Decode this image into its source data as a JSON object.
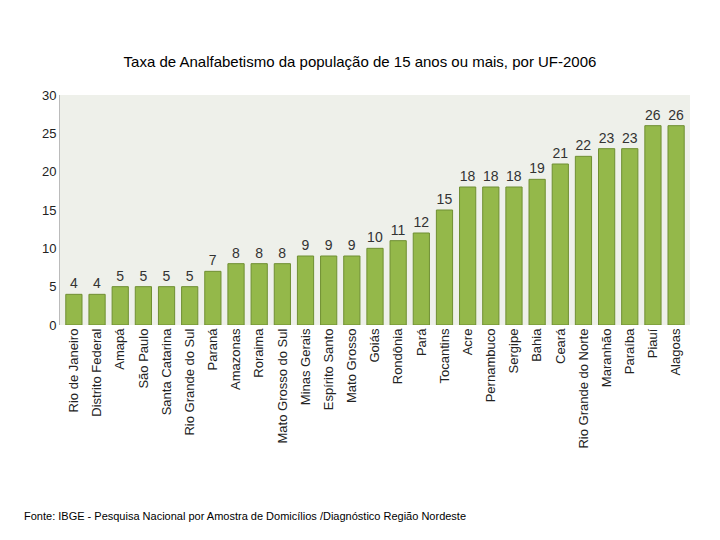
{
  "chart_data": {
    "type": "bar",
    "title": "Taxa de Analfabetismo da população de 15 anos ou mais, por UF-2006",
    "categories": [
      "Rio de Janeiro",
      "Distrito Federal",
      "Amapá",
      "São Paulo",
      "Santa Catarina",
      "Rio Grande do Sul",
      "Paraná",
      "Amazonas",
      "Roraima",
      "Mato Grosso do Sul",
      "Minas Gerais",
      "Espírito Santo",
      "Mato Grosso",
      "Goiás",
      "Rondônia",
      "Pará",
      "Tocantins",
      "Acre",
      "Pernambuco",
      "Sergipe",
      "Bahia",
      "Ceará",
      "Rio Grande do Norte",
      "Maranhão",
      "Paraíba",
      "Piauí",
      "Alagoas"
    ],
    "values": [
      4,
      4,
      5,
      5,
      5,
      5,
      7,
      8,
      8,
      8,
      9,
      9,
      9,
      10,
      11,
      12,
      15,
      18,
      18,
      18,
      19,
      21,
      22,
      23,
      23,
      26,
      26
    ],
    "color": "#94b84a",
    "ylim": [
      0,
      30
    ],
    "yticks": [
      0,
      5,
      10,
      15,
      20,
      25,
      30
    ],
    "grid": false,
    "data_labels": true,
    "annotations": [
      "Fonte: IBGE - Pesquisa Nacional por Amostra de Domicílios /Diagnóstico Região Nordeste"
    ]
  }
}
